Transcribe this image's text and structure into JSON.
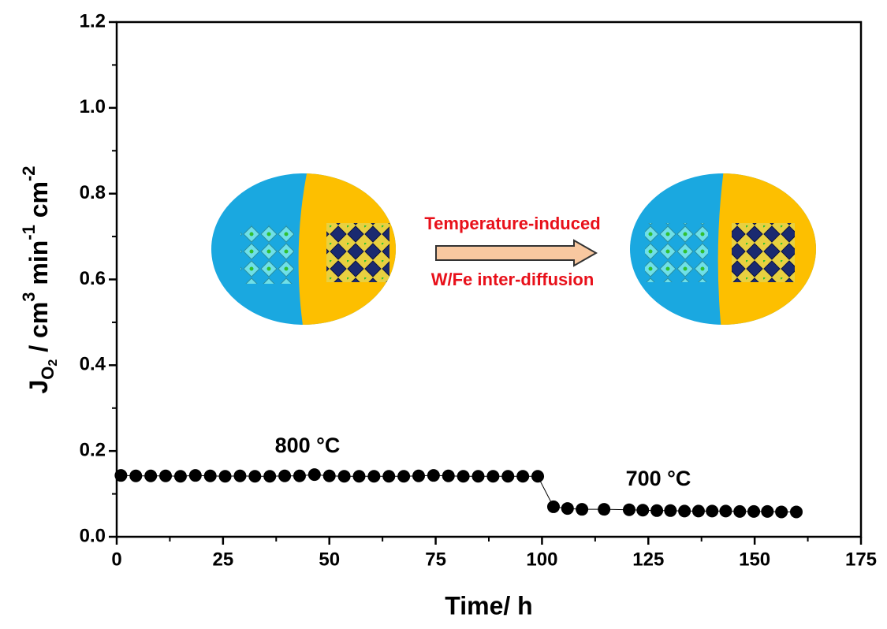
{
  "chart_data": {
    "type": "scatter",
    "xlabel": "Time/ h",
    "ylabel": [
      "J",
      "O",
      "2",
      " / cm",
      "3",
      " min",
      "-1",
      " cm",
      "-2"
    ],
    "x": [
      1,
      4.5,
      8,
      11.5,
      15,
      18.5,
      22,
      25.5,
      29,
      32.5,
      36,
      39.5,
      43,
      46.5,
      50,
      53.5,
      57,
      60.5,
      64,
      67.5,
      71,
      74.5,
      78,
      81.5,
      85,
      88.5,
      92,
      95.5,
      99,
      102.7,
      106,
      109.4,
      114.6,
      120.5,
      123.7,
      127,
      130.2,
      133.5,
      136.8,
      140,
      143.2,
      146.5,
      149.8,
      153,
      156.3,
      159.8
    ],
    "values": [
      0.143,
      0.142,
      0.142,
      0.142,
      0.141,
      0.143,
      0.142,
      0.141,
      0.142,
      0.141,
      0.141,
      0.142,
      0.142,
      0.145,
      0.142,
      0.141,
      0.141,
      0.141,
      0.141,
      0.141,
      0.142,
      0.143,
      0.142,
      0.141,
      0.141,
      0.141,
      0.141,
      0.141,
      0.141,
      0.07,
      0.066,
      0.064,
      0.064,
      0.063,
      0.062,
      0.061,
      0.061,
      0.06,
      0.06,
      0.06,
      0.06,
      0.059,
      0.059,
      0.059,
      0.058,
      0.058
    ],
    "color": "#000000",
    "xlim": [
      0,
      175
    ],
    "ylim": [
      0,
      1.2
    ],
    "xticks": [
      0,
      25,
      50,
      75,
      100,
      125,
      150,
      175
    ],
    "yticks": [
      {
        "value": 0,
        "label": "0.0"
      },
      0.2,
      0.4,
      0.6,
      0.8,
      {
        "value": 1,
        "label": "1.0"
      },
      1.2
    ],
    "xminorticks": [
      12.5,
      37.5,
      62.5,
      87.5,
      112.5,
      137.5,
      162.5
    ],
    "yminorticks": [
      0.1,
      0.3,
      0.5,
      0.7,
      0.9,
      1.1
    ],
    "annotations": [
      "800 °C",
      "700 °C",
      "Temperature-induced",
      "W/Fe inter-diffusion"
    ]
  }
}
